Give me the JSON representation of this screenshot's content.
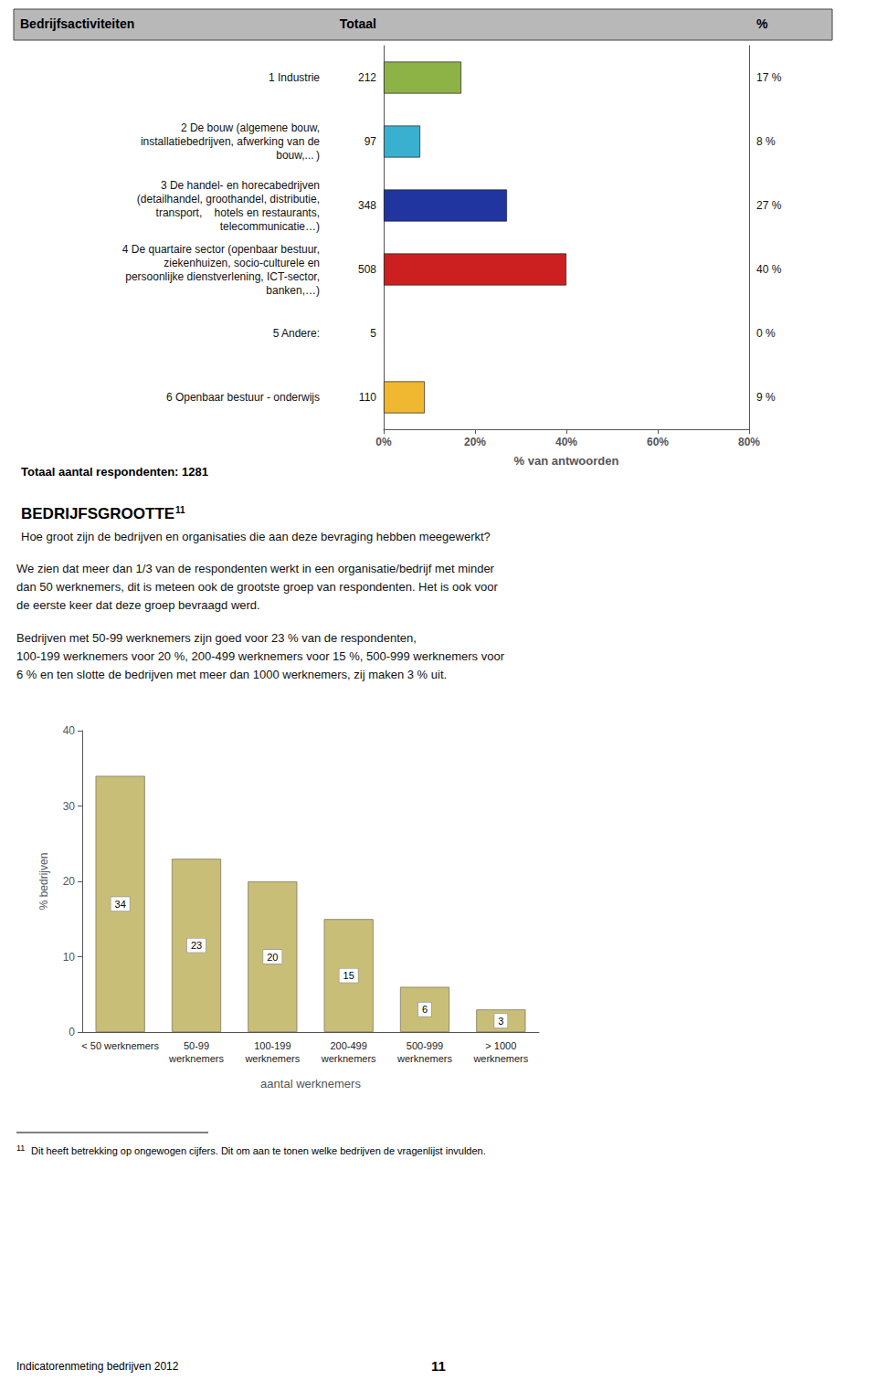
{
  "chart_data": [
    {
      "type": "bar",
      "orientation": "horizontal",
      "title": "Totaal aantal respondenten: 1281",
      "ylabel": "Bedrijfsactiviteiten",
      "xlabel": "% van antwoorden",
      "annotations": [
        "Totaal",
        "%"
      ],
      "categories": [
        "1 Industrie",
        "2 De bouw (algemene bouw,\ninstallatiebedrijven, afwerking van de\nbouw,... )",
        "3 De handel- en horecabedrijven\n(detailhandel, groothandel, distributie,\ntransport,    hotels en restaurants,\ntelecommunicatie…)",
        "4 De quartaire sector (openbaar bestuur,\nziekenhuizen, socio-culturele en\npersoonlijke dienstverlening, ICT-sector,\nbanken,…)",
        "5 Andere:",
        "6 Openbaar bestuur - onderwijs"
      ],
      "values": [
        17,
        8,
        27,
        40,
        0,
        9
      ],
      "value_labels": [
        "17 %",
        "8 %",
        "27 %",
        "40 %",
        "0 %",
        "9 %"
      ],
      "data_labels": true,
      "totals": [
        212,
        97,
        348,
        508,
        5,
        110
      ],
      "colors": [
        "#8db346",
        "#3ab0d0",
        "#2035a0",
        "#cc2020",
        null,
        "#f0b830"
      ],
      "xlim": [
        0,
        80
      ],
      "xticks": [
        {
          "value": 0,
          "label": "0%"
        },
        {
          "value": 20,
          "label": "20%"
        },
        {
          "value": 40,
          "label": "40%"
        },
        {
          "value": 60,
          "label": "60%"
        },
        {
          "value": 80,
          "label": "80%"
        }
      ],
      "grid": false
    },
    {
      "type": "bar",
      "title": "BEDRIJFSGROOTTE",
      "subtitle": "Hoe groot zijn de bedrijven en organisaties die aan deze bevraging hebben meegewerkt?",
      "annotations": [
        "11",
        "We zien dat meer dan 1/3 van de respondenten werkt in een organisatie/bedrijf met minder\ndan 50 werknemers, dit is meteen ook de grootste groep van respondenten. Het is ook voor\nde eerste keer dat deze groep bevraagd werd.",
        "Bedrijven met 50-99 werknemers zijn goed voor 23 % van de respondenten,\n100-199 werknemers voor 20 %, 200-499 werknemers voor 15 %, 500-999 werknemers voor\n6 % en ten slotte de bedrijven met meer dan 1000 werknemers, zij maken 3 % uit.",
        "11",
        "Dit heeft betrekking op ongewogen cijfers. Dit om aan te tonen welke bedrijven de vragenlijst invulden.",
        "Indicatorenmeting bedrijven 2012",
        "11"
      ],
      "categories": [
        "< 50 werknemers",
        "50-99\nwerknemers",
        "100-199\nwerknemers",
        "200-499\nwerknemers",
        "500-999\nwerknemers",
        "> 1000\nwerknemers"
      ],
      "values": [
        34,
        23,
        20,
        15,
        6,
        3
      ],
      "color": "#c8be78",
      "xlabel": "aantal werknemers",
      "ylabel": "% bedrijven",
      "ylim": [
        0,
        40
      ],
      "yticks": [
        0,
        10,
        20,
        30,
        40
      ],
      "data_labels": true,
      "grid": false
    }
  ]
}
